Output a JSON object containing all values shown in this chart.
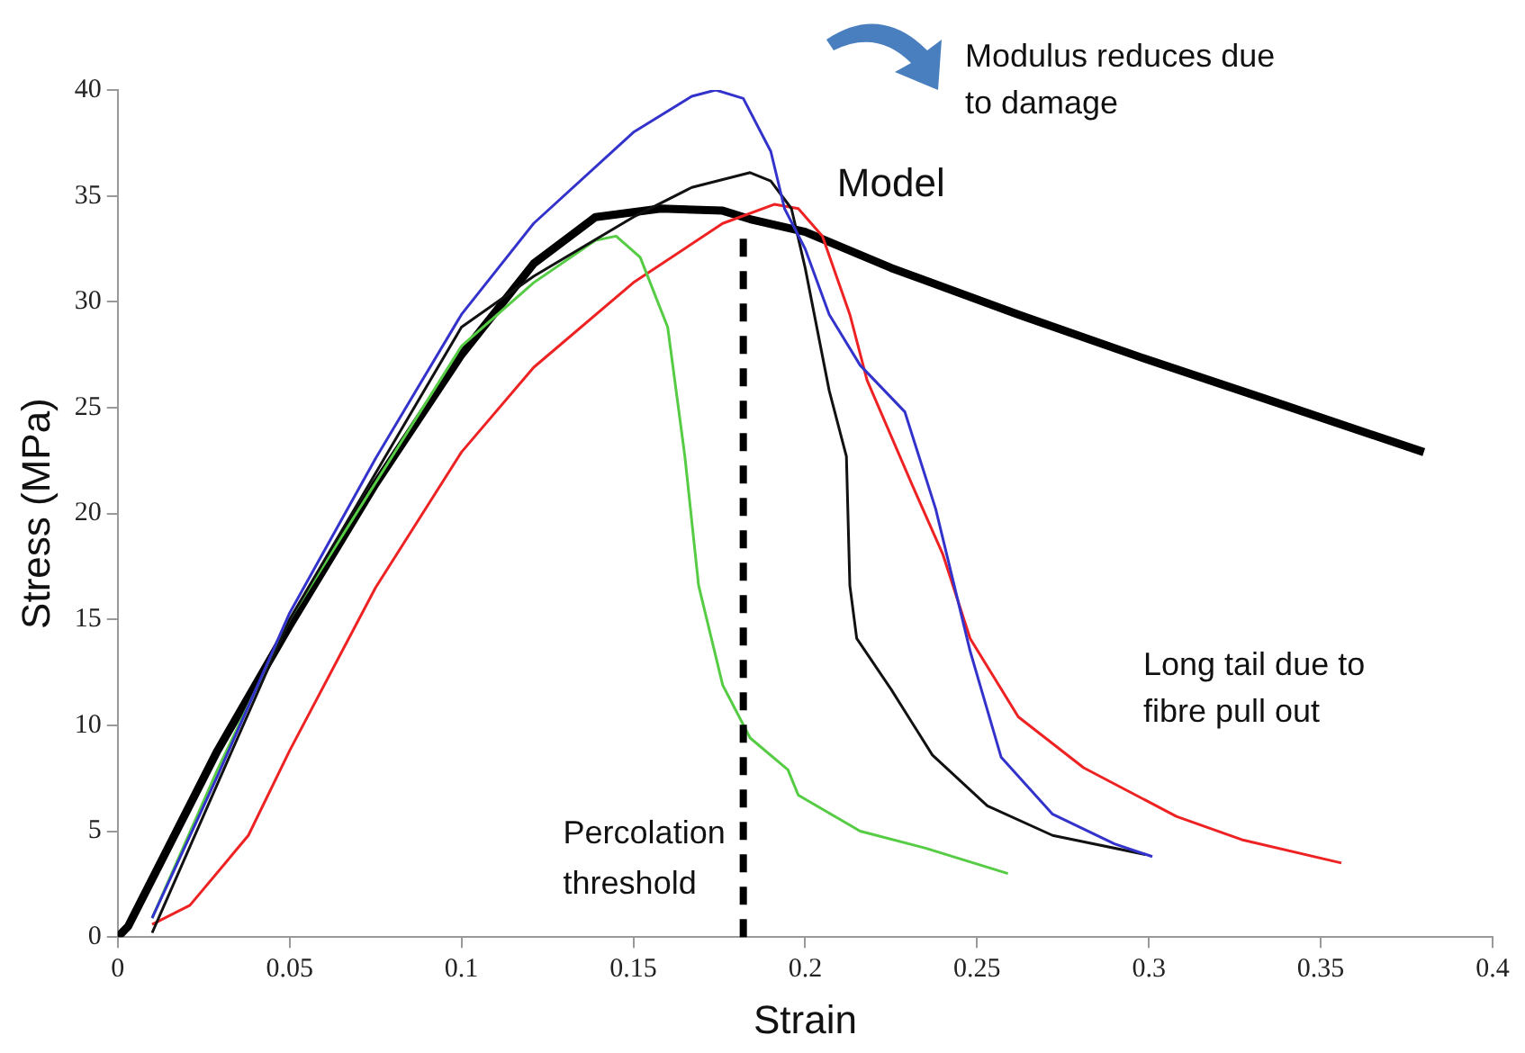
{
  "chart_data": {
    "type": "line",
    "xlabel": "Strain",
    "ylabel": "Stress (MPa)",
    "xlim": [
      0,
      0.4
    ],
    "ylim": [
      0,
      40
    ],
    "xticks": [
      0,
      0.05,
      0.1,
      0.15,
      0.2,
      0.25,
      0.3,
      0.35,
      0.4
    ],
    "yticks": [
      0,
      5,
      10,
      15,
      20,
      25,
      30,
      35,
      40
    ],
    "grid": false,
    "legend": false,
    "marker": "none",
    "line_style": "solid",
    "series": [
      {
        "color": "#3333cc",
        "x": [
          0.01,
          0.029,
          0.05,
          0.075,
          0.1,
          0.121,
          0.15,
          0.167,
          0.174,
          0.182,
          0.19,
          0.194,
          0.2,
          0.207,
          0.216,
          0.229,
          0.238,
          0.248,
          0.257,
          0.272,
          0.29,
          0.301
        ],
        "values": [
          0.9,
          7.6,
          15.3,
          22.6,
          29.4,
          33.7,
          38.0,
          39.7,
          40.0,
          39.6,
          37.1,
          34.4,
          32.5,
          29.4,
          27.0,
          24.8,
          20.2,
          13.5,
          8.5,
          5.8,
          4.4,
          3.8
        ]
      },
      {
        "color": "#111111",
        "x": [
          0.01,
          0.05,
          0.1,
          0.121,
          0.15,
          0.167,
          0.184,
          0.19,
          0.196,
          0.2,
          0.207,
          0.212,
          0.213,
          0.215,
          0.225,
          0.237,
          0.253,
          0.272,
          0.299
        ],
        "values": [
          0.2,
          15.0,
          28.8,
          31.2,
          34.0,
          35.4,
          36.1,
          35.7,
          34.4,
          31.6,
          25.8,
          22.7,
          16.6,
          14.1,
          11.7,
          8.6,
          6.2,
          4.8,
          3.9
        ]
      },
      {
        "color": "#55cc44",
        "x": [
          0.01,
          0.029,
          0.05,
          0.1,
          0.121,
          0.139,
          0.145,
          0.152,
          0.16,
          0.165,
          0.169,
          0.176,
          0.184,
          0.195,
          0.198,
          0.216,
          0.235,
          0.259
        ],
        "values": [
          0.9,
          7.9,
          15.0,
          27.9,
          30.9,
          32.9,
          33.1,
          32.1,
          28.8,
          22.7,
          16.6,
          11.9,
          9.4,
          7.9,
          6.7,
          5.0,
          4.2,
          3.0
        ]
      },
      {
        "color": "#ee2222",
        "x": [
          0.01,
          0.021,
          0.038,
          0.05,
          0.075,
          0.1,
          0.121,
          0.15,
          0.176,
          0.191,
          0.198,
          0.205,
          0.213,
          0.218,
          0.231,
          0.24,
          0.248,
          0.262,
          0.281,
          0.308,
          0.327,
          0.356
        ],
        "values": [
          0.6,
          1.5,
          4.8,
          8.8,
          16.5,
          22.9,
          26.9,
          30.9,
          33.7,
          34.6,
          34.4,
          33.1,
          29.4,
          26.3,
          21.4,
          18.1,
          14.1,
          10.4,
          8.0,
          5.7,
          4.6,
          3.5
        ]
      },
      {
        "name": "Model",
        "color": "#000000",
        "x": [
          0,
          0.003,
          0.029,
          0.05,
          0.075,
          0.1,
          0.121,
          0.139,
          0.158,
          0.176,
          0.184,
          0.2,
          0.225,
          0.262,
          0.299,
          0.336,
          0.38
        ],
        "values": [
          0,
          0.5,
          8.8,
          14.7,
          21.4,
          27.5,
          31.8,
          34.0,
          34.4,
          34.3,
          33.9,
          33.3,
          31.6,
          29.4,
          27.3,
          25.3,
          22.9
        ]
      }
    ],
    "ref_lines": [
      {
        "axis": "x",
        "value": 0.182,
        "label": "Percolation threshold",
        "color": "#000000",
        "line_style": "dashed"
      }
    ],
    "annotations": [
      "Modulus reduces due to damage",
      "Long tail due to fibre pull out"
    ]
  }
}
